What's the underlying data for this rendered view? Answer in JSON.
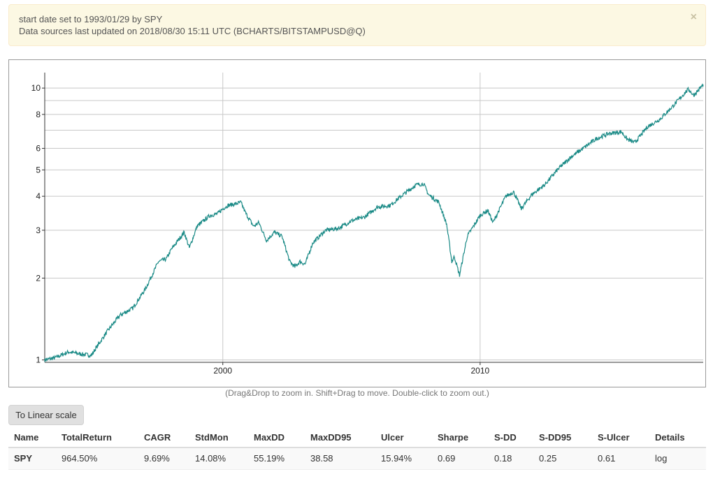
{
  "alert": {
    "line1": "start date set to 1993/01/29 by SPY",
    "line2": "Data sources last updated on 2018/08/30 15:11 UTC (BCHARTS/BITSTAMPUSD@Q)",
    "close_glyph": "×"
  },
  "chart_data": {
    "type": "line",
    "y_scale": "log",
    "ylim": [
      0.98,
      11.4
    ],
    "xlim": [
      1993.08,
      2018.67
    ],
    "x_ticks": [
      {
        "value": 2000,
        "label": "2000"
      },
      {
        "value": 2010,
        "label": "2010"
      }
    ],
    "y_ticks": [
      {
        "value": 1,
        "label": "1"
      },
      {
        "value": 2,
        "label": "2"
      },
      {
        "value": 3,
        "label": "3"
      },
      {
        "value": 4,
        "label": "4"
      },
      {
        "value": 5,
        "label": "5"
      },
      {
        "value": 6,
        "label": "6"
      },
      {
        "value": 8,
        "label": "8"
      },
      {
        "value": 10,
        "label": "10"
      }
    ],
    "y_gridlines": [
      1,
      2,
      3,
      4,
      5,
      6,
      7,
      8,
      9,
      10
    ],
    "grid": true,
    "line_color": "#1a8a86",
    "series": [
      {
        "x": [
          1993.08,
          1993.5,
          1994.0,
          1994.5,
          1994.9,
          1995.0,
          1995.5,
          1996.0,
          1996.5,
          1997.0,
          1997.5,
          1997.8,
          1998.0,
          1998.5,
          1998.7,
          1999.0,
          1999.5,
          1999.8,
          2000.0,
          2000.2,
          2000.5,
          2000.7,
          2000.9,
          2001.2,
          2001.4,
          2001.7,
          2002.0,
          2002.3,
          2002.6,
          2002.8,
          2003.0,
          2003.2,
          2003.5,
          2004.0,
          2004.5,
          2005.0,
          2005.5,
          2006.0,
          2006.5,
          2007.0,
          2007.5,
          2007.8,
          2008.0,
          2008.4,
          2008.7,
          2008.9,
          2009.0,
          2009.2,
          2009.5,
          2010.0,
          2010.3,
          2010.5,
          2011.0,
          2011.3,
          2011.6,
          2012.0,
          2012.5,
          2013.0,
          2013.5,
          2014.0,
          2014.5,
          2015.0,
          2015.5,
          2015.7,
          2016.0,
          2016.1,
          2016.5,
          2017.0,
          2017.5,
          2018.0,
          2018.1,
          2018.3,
          2018.67
        ],
        "y": [
          1.0,
          1.02,
          1.07,
          1.05,
          1.04,
          1.08,
          1.27,
          1.46,
          1.55,
          1.83,
          2.3,
          2.35,
          2.55,
          2.95,
          2.58,
          3.1,
          3.4,
          3.45,
          3.6,
          3.7,
          3.75,
          3.8,
          3.45,
          3.1,
          3.2,
          2.75,
          2.95,
          2.85,
          2.3,
          2.2,
          2.3,
          2.25,
          2.7,
          3.0,
          3.05,
          3.25,
          3.35,
          3.65,
          3.7,
          4.05,
          4.4,
          4.45,
          4.05,
          3.8,
          3.15,
          2.3,
          2.4,
          2.05,
          2.85,
          3.4,
          3.55,
          3.2,
          4.0,
          4.15,
          3.6,
          4.05,
          4.4,
          5.0,
          5.55,
          6.0,
          6.5,
          6.8,
          6.9,
          6.5,
          6.3,
          6.45,
          7.2,
          7.7,
          8.6,
          9.7,
          9.9,
          9.4,
          10.3
        ]
      }
    ]
  },
  "hint": "(Drag&Drop to zoom in. Shift+Drag to move. Double-click to zoom out.)",
  "scale_button": "To Linear scale",
  "table": {
    "headers": [
      "Name",
      "TotalReturn",
      "CAGR",
      "StdMon",
      "MaxDD",
      "MaxDD95",
      "Ulcer",
      "Sharpe",
      "S-DD",
      "S-DD95",
      "S-Ulcer",
      "Details"
    ],
    "rows": [
      {
        "name": "SPY",
        "total_return": "964.50%",
        "cagr": "9.69%",
        "std_mon": "14.08%",
        "max_dd": "55.19%",
        "max_dd95": "38.58",
        "ulcer": "15.94%",
        "sharpe": "0.69",
        "s_dd": "0.18",
        "s_dd95": "0.25",
        "s_ulcer": "0.61",
        "details": "log"
      }
    ]
  }
}
